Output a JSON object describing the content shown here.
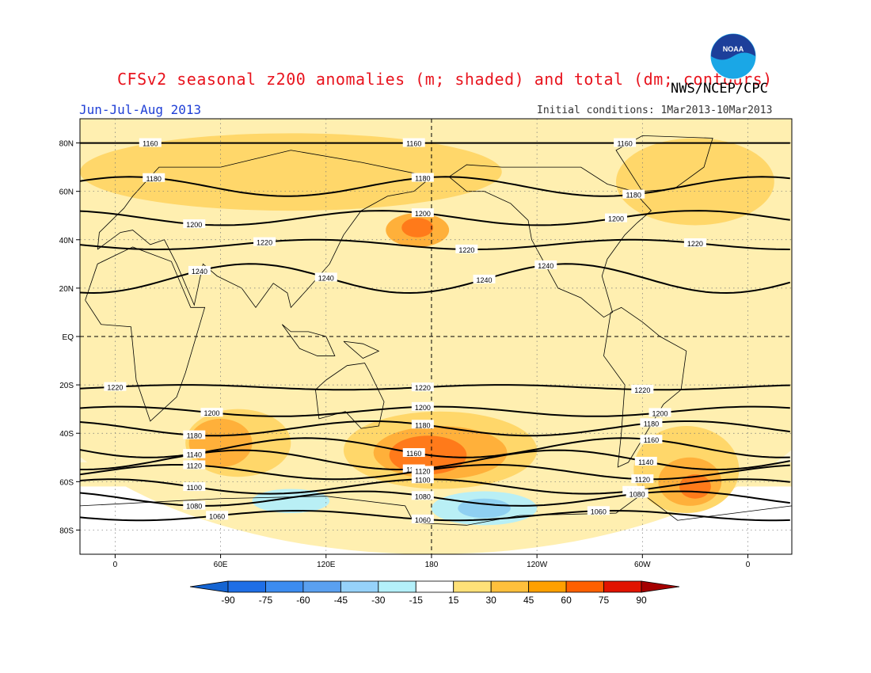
{
  "header": {
    "title": "CFSv2 seasonal z200 anomalies (m; shaded) and total (dm; contours)",
    "org": "NWS/NCEP/CPC",
    "period": "Jun-Jul-Aug 2013",
    "initial_conditions": "Initial conditions: 1Mar2013-10Mar2013",
    "logo_text": "NOAA"
  },
  "map": {
    "lat_ticks": [
      {
        "lat": 80,
        "label": "80N"
      },
      {
        "lat": 60,
        "label": "60N"
      },
      {
        "lat": 40,
        "label": "40N"
      },
      {
        "lat": 20,
        "label": "20N"
      },
      {
        "lat": 0,
        "label": "EQ"
      },
      {
        "lat": -20,
        "label": "20S"
      },
      {
        "lat": -40,
        "label": "40S"
      },
      {
        "lat": -60,
        "label": "60S"
      },
      {
        "lat": -80,
        "label": "80S"
      }
    ],
    "lon_ticks": [
      {
        "lon": 0,
        "label": "0"
      },
      {
        "lon": 60,
        "label": "60E"
      },
      {
        "lon": 120,
        "label": "120E"
      },
      {
        "lon": 180,
        "label": "180"
      },
      {
        "lon": 240,
        "label": "120W"
      },
      {
        "lon": 300,
        "label": "60W"
      },
      {
        "lon": 360,
        "label": "0"
      }
    ],
    "lon_range": [
      -20,
      385
    ],
    "lat_range": [
      -90,
      90
    ],
    "contours": [
      {
        "value": "1160",
        "lat": 80,
        "amp": 0,
        "label_lons": [
          20,
          170,
          290
        ]
      },
      {
        "value": "1180",
        "lat": 62,
        "amp": 4,
        "label_lons": [
          22,
          175,
          295
        ]
      },
      {
        "value": "1200",
        "lat": 49,
        "amp": 3,
        "label_lons": [
          45,
          175,
          285
        ]
      },
      {
        "value": "1220",
        "lat": 38,
        "amp": 2,
        "label_lons": [
          85,
          200,
          330
        ]
      },
      {
        "value": "1240",
        "lat": 24,
        "amp": 6,
        "label_lons": [
          48,
          120,
          210,
          245
        ]
      },
      {
        "value": "1220",
        "lat": -21,
        "amp": 1,
        "label_lons": [
          0,
          175,
          300
        ]
      },
      {
        "value": "1200",
        "lat": -31,
        "amp": 2,
        "label_lons": [
          55,
          175,
          310
        ]
      },
      {
        "value": "1180",
        "lat": -38,
        "amp": 3,
        "label_lons": [
          45,
          175,
          305
        ]
      },
      {
        "value": "1160",
        "lat": -46,
        "amp": 4,
        "label_lons": [
          45,
          170,
          305
        ]
      },
      {
        "value": "1140",
        "lat": -51,
        "amp": 4,
        "label_lons": [
          45,
          170,
          302
        ]
      },
      {
        "value": "1120",
        "lat": -56,
        "amp": 3,
        "label_lons": [
          45,
          175,
          300
        ]
      },
      {
        "value": "1100",
        "lat": -62,
        "amp": 3,
        "label_lons": [
          45,
          175,
          295
        ]
      },
      {
        "value": "1080",
        "lat": -67,
        "amp": 3,
        "label_lons": [
          45,
          175,
          297
        ]
      },
      {
        "value": "1060",
        "lat": -74,
        "amp": 2,
        "label_lons": [
          58,
          175,
          275
        ]
      }
    ],
    "anomaly_regions": [
      {
        "level": 15,
        "cx": 180,
        "cy": 0,
        "rx": 240,
        "ry": 90
      },
      {
        "level": 30,
        "cx": 100,
        "cy": 68,
        "rx": 120,
        "ry": 16
      },
      {
        "level": 30,
        "cx": 330,
        "cy": 64,
        "rx": 45,
        "ry": 18
      },
      {
        "level": 30,
        "cx": 185,
        "cy": -47,
        "rx": 55,
        "ry": 16
      },
      {
        "level": 30,
        "cx": 70,
        "cy": -44,
        "rx": 30,
        "ry": 14
      },
      {
        "level": 30,
        "cx": 325,
        "cy": -55,
        "rx": 30,
        "ry": 18
      },
      {
        "level": 45,
        "cx": 172,
        "cy": 44,
        "rx": 18,
        "ry": 7
      },
      {
        "level": 45,
        "cx": 185,
        "cy": -48,
        "rx": 38,
        "ry": 11
      },
      {
        "level": 45,
        "cx": 60,
        "cy": -44,
        "rx": 18,
        "ry": 10
      },
      {
        "level": 45,
        "cx": 327,
        "cy": -60,
        "rx": 18,
        "ry": 10
      },
      {
        "level": 60,
        "cx": 172,
        "cy": 45,
        "rx": 9,
        "ry": 4
      },
      {
        "level": 60,
        "cx": 178,
        "cy": -49,
        "rx": 22,
        "ry": 8
      },
      {
        "level": 60,
        "cx": 330,
        "cy": -62,
        "rx": 9,
        "ry": 5
      },
      {
        "level": -15,
        "cx": 210,
        "cy": -71,
        "rx": 30,
        "ry": 7
      },
      {
        "level": -15,
        "cx": 100,
        "cy": -68,
        "rx": 22,
        "ry": 5
      },
      {
        "level": -30,
        "cx": 210,
        "cy": -71,
        "rx": 15,
        "ry": 4
      }
    ]
  },
  "colorbar": {
    "labels": [
      "-90",
      "-75",
      "-60",
      "-45",
      "-30",
      "-15",
      "15",
      "30",
      "45",
      "60",
      "75",
      "90"
    ],
    "colors": [
      "#1464d2",
      "#1e6ee6",
      "#3c8cf0",
      "#5aa0f0",
      "#96d2fa",
      "#b4f0fa",
      "#ffffff",
      "#ffe178",
      "#ffc03c",
      "#ffa000",
      "#ff6000",
      "#e11400",
      "#a50000"
    ]
  }
}
